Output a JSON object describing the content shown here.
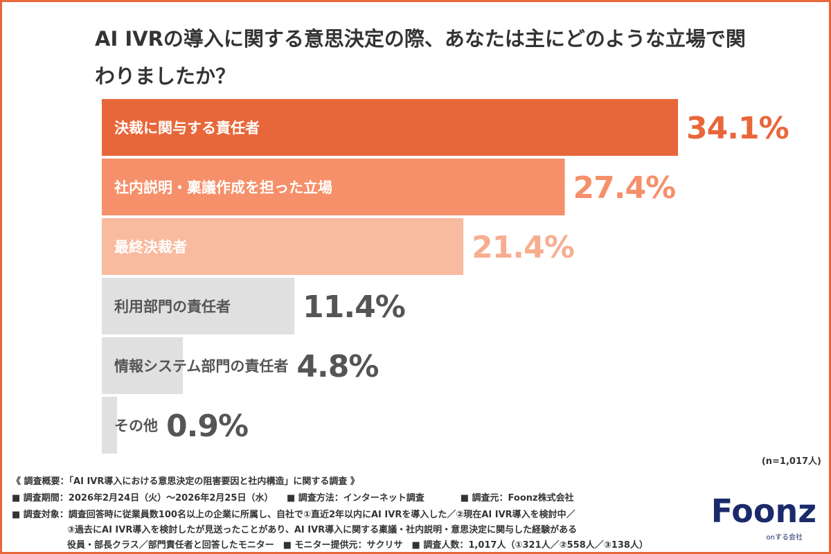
{
  "chart_data": {
    "type": "barh",
    "title": "AI IVRの導入に関する意思決定の際、あなたは主にどのような立場で関わりましたか？",
    "categories": [
      "決裁に関与する責任者",
      "社内説明・稟議作成を担った立場",
      "最終決裁者",
      "利用部門の責任者",
      "情報システム部門の責任者",
      "その他"
    ],
    "values": [
      34.1,
      27.4,
      21.4,
      11.4,
      4.8,
      0.9
    ],
    "value_labels": [
      "34.1%",
      "27.4%",
      "21.4%",
      "11.4%",
      "4.8%",
      "0.9%"
    ],
    "colors": [
      "#e8673a",
      "#f5906a",
      "#f9bba0",
      "#e0e0e0",
      "#e0e0e0",
      "#e0e0e0"
    ],
    "label_colors": [
      "#ffffff",
      "#ffffff",
      "#ffffff",
      "#555555",
      "#555555",
      "#555555"
    ],
    "value_label_colors": [
      "#e8673a",
      "#f5906a",
      "#f7ae90",
      "#555555",
      "#555555",
      "#555555"
    ],
    "note": "(n=1,017人)"
  },
  "footer": {
    "lines": [
      "《 調査概要：「AI IVR導入における意思決定の阻害要因と社内構造」に関する調査 》",
      "■ 調査期間：2026年2月24日（火）〜2026年2月25日（水）　　■ 調査方法：インターネット調査　　　　■ 調査元：Foonz株式会社",
      "■ 調査対象：調査回答時に従業員数100名以上の企業に所属し、自社で①直近2年以内にAI IVRを導入した／②現在AI IVR導入を検討中／",
      "③過去にAI IVR導入を検討したが見送ったことがあり、AI IVR導入に関する稟議・社内説明・意思決定に関与した経験がある",
      "役員・部長クラス／部門責任者と回答したモニター　■ モニター提供元：サクリサ　■ 調査人数：1,017人（①321人／②558人／③138人）"
    ],
    "logo": "Foonz",
    "tagline": "onする会社"
  }
}
